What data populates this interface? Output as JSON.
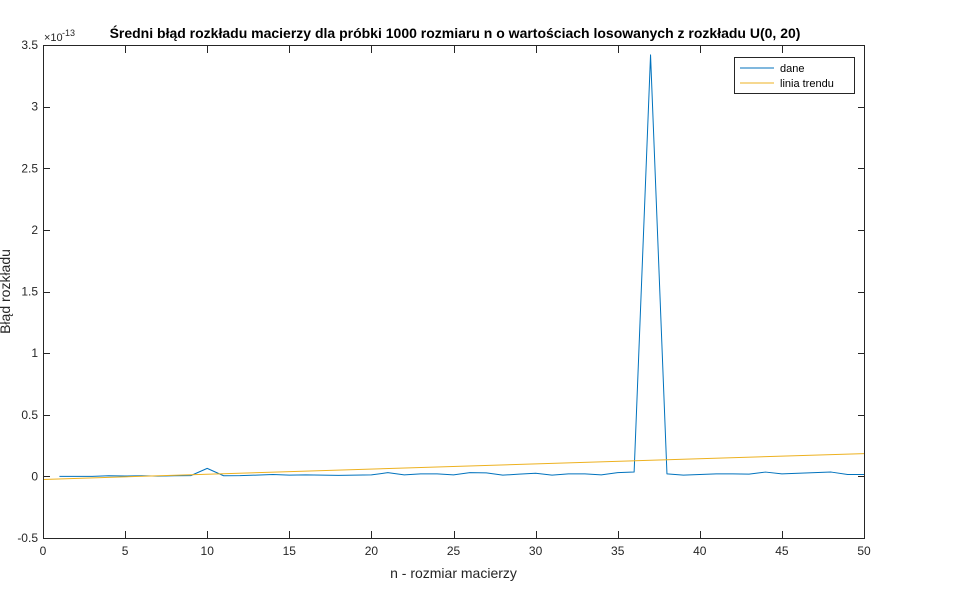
{
  "chart_data": {
    "type": "line",
    "title": "Średni błąd rozkładu macierzy dla próbki 1000 rozmiaru n o wartościach losowanych z rozkładu U(0, 20)",
    "xlabel": "n - rozmiar macierzy",
    "ylabel": "Błąd rozkładu",
    "y_exponent_label": "×10",
    "y_exponent": "-13",
    "xlim": [
      0,
      50
    ],
    "ylim": [
      -0.5,
      3.5
    ],
    "xticks": [
      0,
      5,
      10,
      15,
      20,
      25,
      30,
      35,
      40,
      45,
      50
    ],
    "yticks": [
      -0.5,
      0,
      0.5,
      1,
      1.5,
      2,
      2.5,
      3,
      3.5
    ],
    "xtick_labels": [
      "0",
      "5",
      "10",
      "15",
      "20",
      "25",
      "30",
      "35",
      "40",
      "45",
      "50"
    ],
    "ytick_labels": [
      "-0.5",
      "0",
      "0.5",
      "1",
      "1.5",
      "2",
      "2.5",
      "3",
      "3.5"
    ],
    "grid": false,
    "legend_position": "top-right",
    "series": [
      {
        "name": "dane",
        "color": "#0072BD",
        "x": [
          1,
          2,
          3,
          4,
          5,
          6,
          7,
          8,
          9,
          10,
          11,
          12,
          13,
          14,
          15,
          16,
          17,
          18,
          19,
          20,
          21,
          22,
          23,
          24,
          25,
          26,
          27,
          28,
          29,
          30,
          31,
          32,
          33,
          34,
          35,
          36,
          37,
          38,
          39,
          40,
          41,
          42,
          43,
          44,
          45,
          46,
          47,
          48,
          49,
          50
        ],
        "y": [
          0,
          0,
          0,
          0.005,
          0.003,
          0.005,
          0.002,
          0.005,
          0.006,
          0.065,
          0.005,
          0.006,
          0.01,
          0.015,
          0.01,
          0.012,
          0.01,
          0.008,
          0.01,
          0.012,
          0.03,
          0.012,
          0.02,
          0.02,
          0.012,
          0.03,
          0.028,
          0.01,
          0.018,
          0.025,
          0.01,
          0.02,
          0.02,
          0.012,
          0.03,
          0.035,
          3.42,
          0.02,
          0.01,
          0.015,
          0.02,
          0.02,
          0.018,
          0.035,
          0.02,
          0.025,
          0.03,
          0.035,
          0.015,
          0.015
        ]
      },
      {
        "name": "linia trendu",
        "color": "#EDB120",
        "x": [
          0,
          50
        ],
        "y": [
          -0.025,
          0.185
        ]
      }
    ]
  }
}
